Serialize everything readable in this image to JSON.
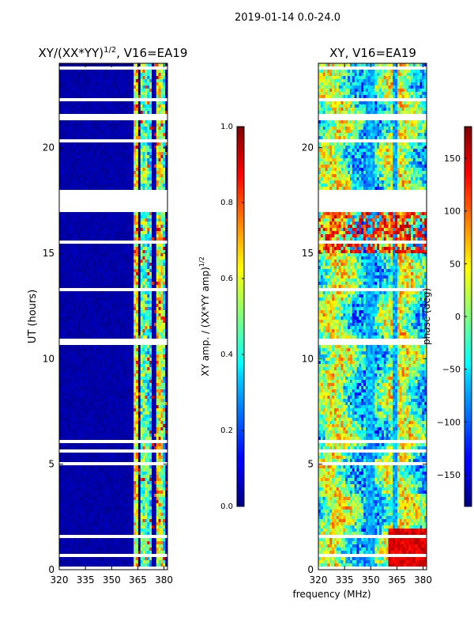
{
  "suptitle": "2019-01-14 0.0-24.0",
  "chart_data": [
    {
      "type": "heatmap",
      "title_main": "XY/(XX*YY)",
      "title_sup": "1/2",
      "title_rest": ", V16=EA19",
      "xlabel": "",
      "ylabel": "UT (hours)",
      "xlim": [
        320,
        382
      ],
      "ylim": [
        0,
        24
      ],
      "xticks": [
        320,
        335,
        350,
        365,
        380
      ],
      "yticks": [
        0,
        5,
        10,
        15,
        20
      ],
      "colorbar": {
        "label_main": "XY amp. / (XX*YY amp)",
        "label_sup": "1/2",
        "range": [
          0.0,
          1.0
        ],
        "ticks": [
          "0.0",
          "0.2",
          "0.4",
          "0.6",
          "0.8",
          "1.0"
        ]
      }
    },
    {
      "type": "heatmap",
      "title": "XY, V16=EA19",
      "xlabel": "frequency (MHz)",
      "ylabel": "",
      "xlim": [
        320,
        382
      ],
      "ylim": [
        0,
        24
      ],
      "xticks": [
        320,
        335,
        350,
        365,
        380
      ],
      "yticks": [
        0,
        5,
        10,
        15,
        20
      ],
      "colorbar": {
        "label": "phase (deg)",
        "range": [
          -180,
          180
        ],
        "ticks": [
          "150",
          "100",
          "50",
          "0",
          "−50",
          "−100",
          "−150"
        ],
        "tick_values": [
          150,
          100,
          50,
          0,
          -50,
          -100,
          -150
        ]
      }
    }
  ],
  "blank_time_ranges_hours": [
    [
      0.0,
      0.1
    ],
    [
      0.55,
      0.68
    ],
    [
      1.0,
      1.07
    ],
    [
      1.5,
      1.68
    ],
    [
      4.9,
      5.1
    ],
    [
      5.5,
      5.65
    ],
    [
      6.0,
      6.1
    ],
    [
      10.6,
      10.9
    ],
    [
      13.2,
      13.35
    ],
    [
      14.5,
      14.6
    ],
    [
      15.5,
      15.6
    ],
    [
      16.9,
      18.0
    ],
    [
      20.2,
      20.4
    ],
    [
      21.3,
      21.6
    ],
    [
      22.2,
      22.3
    ],
    [
      22.6,
      22.7
    ],
    [
      23.2,
      23.3
    ],
    [
      23.7,
      23.9
    ]
  ],
  "colors": {
    "jet_low": "#00007f",
    "jet_high": "#7f0000",
    "background": "#ffffff"
  }
}
